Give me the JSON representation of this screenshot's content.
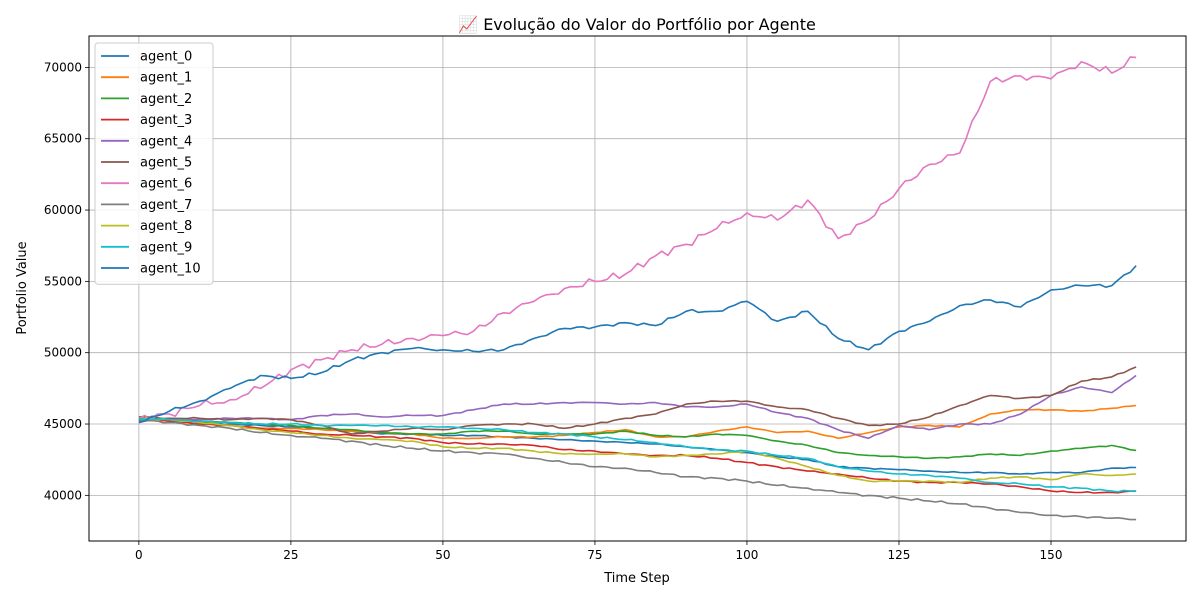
{
  "chart_data": {
    "type": "line",
    "title": "📈 Evolução do Valor do Portfólio por Agente",
    "xlabel": "Time Step",
    "ylabel": "Portfolio Value",
    "xlim": [
      -8.2,
      172.2
    ],
    "ylim": [
      36800,
      72200
    ],
    "xticks": [
      0,
      25,
      50,
      75,
      100,
      125,
      150
    ],
    "yticks": [
      40000,
      45000,
      50000,
      55000,
      60000,
      65000,
      70000
    ],
    "grid": true,
    "legend_position": "upper-left",
    "x_anchors": [
      0,
      5,
      10,
      15,
      20,
      25,
      30,
      35,
      40,
      45,
      50,
      55,
      60,
      65,
      70,
      75,
      80,
      85,
      90,
      95,
      100,
      105,
      110,
      115,
      120,
      125,
      130,
      135,
      140,
      145,
      150,
      155,
      160,
      164
    ],
    "series": [
      {
        "name": "agent_0",
        "color": "#1f77b4",
        "values": [
          45200,
          45300,
          45100,
          45000,
          44900,
          44800,
          44700,
          44500,
          44300,
          44300,
          44200,
          44200,
          44100,
          44000,
          43900,
          43800,
          43700,
          43600,
          43400,
          43200,
          43000,
          42700,
          42500,
          42000,
          41900,
          41800,
          41700,
          41600,
          41600,
          41500,
          41600,
          41600,
          41900,
          41950
        ]
      },
      {
        "name": "agent_1",
        "color": "#ff7f0e",
        "values": [
          45300,
          45200,
          45000,
          44900,
          44700,
          44700,
          44600,
          44500,
          44400,
          44300,
          44000,
          44000,
          44100,
          44100,
          44200,
          44400,
          44600,
          44100,
          44100,
          44500,
          44800,
          44400,
          44500,
          44000,
          44400,
          44800,
          44900,
          44800,
          45700,
          46000,
          46000,
          45900,
          46100,
          46300
        ]
      },
      {
        "name": "agent_2",
        "color": "#2ca02c",
        "values": [
          45400,
          45300,
          45200,
          45100,
          45000,
          44900,
          44700,
          44600,
          44400,
          44300,
          44300,
          44500,
          44500,
          44300,
          44300,
          44300,
          44500,
          44200,
          44100,
          44300,
          44200,
          43800,
          43500,
          43000,
          42800,
          42700,
          42600,
          42700,
          42900,
          42800,
          43100,
          43300,
          43500,
          43150
        ]
      },
      {
        "name": "agent_3",
        "color": "#d62728",
        "values": [
          45300,
          45200,
          45000,
          44900,
          44700,
          44500,
          44300,
          44200,
          44100,
          44000,
          43700,
          43600,
          43600,
          43500,
          43200,
          43100,
          42900,
          42800,
          42800,
          42600,
          42300,
          42000,
          41700,
          41500,
          41200,
          41000,
          40900,
          40900,
          40800,
          40600,
          40300,
          40200,
          40200,
          40300
        ]
      },
      {
        "name": "agent_4",
        "color": "#9467bd",
        "values": [
          45300,
          45400,
          45300,
          45400,
          45400,
          45300,
          45600,
          45700,
          45500,
          45600,
          45600,
          46000,
          46400,
          46400,
          46500,
          46500,
          46400,
          46500,
          46200,
          46200,
          46400,
          45800,
          45400,
          44600,
          44000,
          44900,
          44600,
          45000,
          45000,
          45700,
          47000,
          47600,
          47200,
          48400
        ]
      },
      {
        "name": "agent_5",
        "color": "#8c564b",
        "values": [
          45500,
          45400,
          45400,
          45300,
          45400,
          45300,
          44900,
          44300,
          44500,
          44700,
          44600,
          44900,
          45000,
          45000,
          44700,
          45000,
          45400,
          45700,
          46400,
          46600,
          46600,
          46200,
          46000,
          45400,
          44900,
          45000,
          45500,
          46300,
          47000,
          46800,
          47000,
          48000,
          48300,
          49000
        ]
      },
      {
        "name": "agent_6",
        "color": "#e377c2",
        "values": [
          45400,
          45700,
          46300,
          46700,
          47500,
          48800,
          49500,
          50200,
          50600,
          51000,
          51200,
          51500,
          52800,
          53600,
          54500,
          55000,
          55500,
          56800,
          57600,
          58700,
          59800,
          59300,
          60700,
          58000,
          59300,
          61500,
          63200,
          64000,
          69000,
          69400,
          69200,
          70400,
          69600,
          70700
        ]
      },
      {
        "name": "agent_7",
        "color": "#7f7f7f",
        "values": [
          45300,
          45100,
          44900,
          44700,
          44400,
          44200,
          44000,
          43800,
          43500,
          43300,
          43100,
          43000,
          42900,
          42600,
          42300,
          42000,
          41900,
          41600,
          41300,
          41200,
          41000,
          40700,
          40500,
          40200,
          40000,
          39800,
          39600,
          39400,
          39100,
          38800,
          38600,
          38500,
          38400,
          38300
        ]
      },
      {
        "name": "agent_8",
        "color": "#bcbd22",
        "values": [
          45400,
          45300,
          45100,
          44900,
          44600,
          44400,
          44200,
          44000,
          43900,
          43800,
          43400,
          43300,
          43300,
          43100,
          42900,
          42900,
          42900,
          42700,
          42800,
          42900,
          43100,
          42600,
          42000,
          41400,
          41000,
          41000,
          41000,
          40900,
          41200,
          41300,
          41100,
          41500,
          41400,
          41500
        ]
      },
      {
        "name": "agent_9",
        "color": "#17becf",
        "values": [
          45400,
          45300,
          45200,
          45100,
          45000,
          45000,
          44900,
          44900,
          44900,
          44800,
          44800,
          44700,
          44600,
          44400,
          44300,
          44100,
          43900,
          43700,
          43400,
          43200,
          43100,
          42800,
          42600,
          42000,
          41700,
          41500,
          41400,
          41200,
          40900,
          40800,
          40600,
          40500,
          40300,
          40300
        ]
      },
      {
        "name": "agent_10",
        "color": "#1f77b4",
        "values": [
          45100,
          45900,
          46600,
          47500,
          48400,
          48200,
          48600,
          49500,
          50000,
          50300,
          50200,
          50100,
          50200,
          51000,
          51700,
          51800,
          52100,
          51900,
          52900,
          52900,
          53600,
          52200,
          52900,
          51000,
          50200,
          51500,
          52200,
          53300,
          53700,
          53200,
          54400,
          54700,
          54700,
          56100
        ]
      }
    ]
  }
}
